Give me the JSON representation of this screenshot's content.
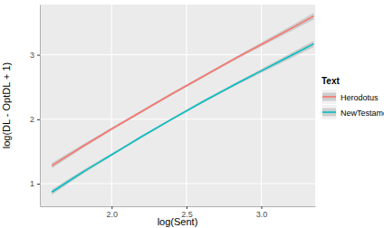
{
  "chart_data": {
    "type": "line",
    "x_label": "log(Sent)",
    "y_label": "log(DL - OptDL + 1)",
    "legend_title": "Text",
    "legend": "right",
    "grid": true,
    "x": [
      1.6,
      1.8,
      2.0,
      2.2,
      2.4,
      2.6,
      2.8,
      3.0,
      3.2,
      3.35
    ],
    "xlim": [
      1.52,
      3.36
    ],
    "xticks": [
      {
        "value": 2.0,
        "label": "2.0"
      },
      {
        "value": 2.5,
        "label": "2.5"
      },
      {
        "value": 3.0,
        "label": "3.0"
      }
    ],
    "ylim": [
      0.65,
      3.78
    ],
    "yticks": [
      1,
      2,
      3
    ],
    "series": [
      {
        "name": "Herodotus",
        "color": "#F8766D",
        "values": [
          1.28,
          1.57,
          1.85,
          2.12,
          2.39,
          2.65,
          2.91,
          3.16,
          3.41,
          3.6
        ],
        "lower": [
          1.24,
          1.54,
          1.83,
          2.1,
          2.37,
          2.63,
          2.89,
          3.13,
          3.37,
          3.55
        ],
        "upper": [
          1.32,
          1.6,
          1.87,
          2.14,
          2.41,
          2.67,
          2.93,
          3.19,
          3.45,
          3.65
        ]
      },
      {
        "name": "NewTestament",
        "color": "#00BFC4",
        "values": [
          0.87,
          1.17,
          1.45,
          1.73,
          2.0,
          2.26,
          2.51,
          2.75,
          2.99,
          3.17
        ],
        "lower": [
          0.83,
          1.14,
          1.43,
          1.71,
          1.98,
          2.24,
          2.49,
          2.72,
          2.95,
          3.12
        ],
        "upper": [
          0.91,
          1.2,
          1.47,
          1.75,
          2.02,
          2.28,
          2.53,
          2.78,
          3.03,
          3.22
        ]
      }
    ]
  }
}
